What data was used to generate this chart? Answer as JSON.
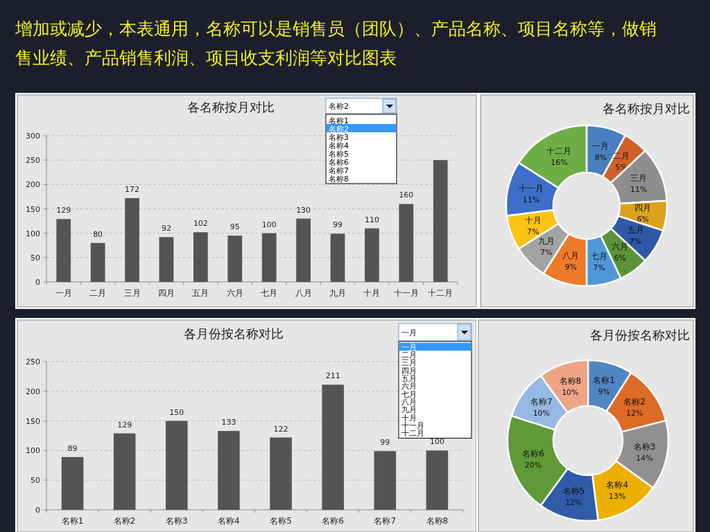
{
  "chart_data": [
    {
      "type": "other",
      "annotations": [
        "增加或减少，本表通用，名称可以是销售员（团队）、产品名称、项目名称等，做销",
        "售业绩、产品销售利润、项目收支利润等对比图表"
      ]
    },
    {
      "type": "bar",
      "title": "各名称按月对比",
      "categories": [
        "一月",
        "二月",
        "三月",
        "四月",
        "五月",
        "六月",
        "七月",
        "八月",
        "九月",
        "十月",
        "十一月",
        "十二月"
      ],
      "values": [
        129,
        80,
        172,
        92,
        102,
        95,
        100,
        130,
        99,
        110,
        160,
        250
      ],
      "value_labels": [
        "129",
        "80",
        "172",
        "92",
        "102",
        "95",
        "100",
        "130",
        "99",
        "110",
        "160",
        null
      ],
      "color": "#545454",
      "ylim": [
        0,
        300
      ],
      "yticks": [
        0,
        50,
        100,
        150,
        200,
        250,
        300
      ],
      "grid": "y",
      "annotations": [
        "名称2",
        "名称1",
        "名称2",
        "名称3",
        "名称4",
        "名称5",
        "名称6",
        "名称7",
        "名称8"
      ]
    },
    {
      "type": "donut",
      "title": "各名称按月对比",
      "categories": [
        "一月",
        "二月",
        "三月",
        "四月",
        "五月",
        "六月",
        "七月",
        "八月",
        "九月",
        "十月",
        "十一月",
        "十二月"
      ],
      "values": [
        8,
        5,
        11,
        6,
        7,
        6,
        7,
        9,
        7,
        7,
        11,
        16
      ],
      "value_labels": [
        "8%",
        "5%",
        "11%",
        "6%",
        "7%",
        "6%",
        "7%",
        "9%",
        "7%",
        "7%",
        "11%",
        "16%"
      ],
      "colors": [
        "#4a7fbf",
        "#d1612a",
        "#8e8e8e",
        "#dca11d",
        "#3058a6",
        "#5c9237",
        "#4f98d8",
        "#ef7a2a",
        "#a3a3a3",
        "#fdc313",
        "#3e6ec8",
        "#6fae46"
      ]
    },
    {
      "type": "bar",
      "title": "各月份按名称对比",
      "categories": [
        "名称1",
        "名称2",
        "名称3",
        "名称4",
        "名称5",
        "名称6",
        "名称7",
        "名称8"
      ],
      "values": [
        89,
        129,
        150,
        133,
        122,
        211,
        99,
        100
      ],
      "data_labels": true,
      "color": "#545454",
      "ylim": [
        0,
        250
      ],
      "yticks": [
        0,
        50,
        100,
        150,
        200,
        250
      ],
      "grid": "y",
      "annotations": [
        "一月",
        "一月",
        "二月",
        "三月",
        "四月",
        "五月",
        "六月",
        "七月",
        "八月",
        "九月",
        "十月",
        "十一月",
        "十二月"
      ]
    },
    {
      "type": "donut",
      "title": "各月份按名称对比",
      "categories": [
        "名称1",
        "名称2",
        "名称3",
        "名称4",
        "名称5",
        "名称6",
        "名称7",
        "名称8"
      ],
      "values": [
        9,
        12,
        14,
        13,
        12,
        20,
        10,
        10
      ],
      "value_labels": [
        "9%",
        "12%",
        "14%",
        "13%",
        "12%",
        "20%",
        "10%",
        "10%"
      ],
      "colors": [
        "#4f86c1",
        "#dd6a25",
        "#909090",
        "#ebb000",
        "#2f5ba9",
        "#5f9a37",
        "#95b9e2",
        "#f0a486"
      ]
    }
  ]
}
